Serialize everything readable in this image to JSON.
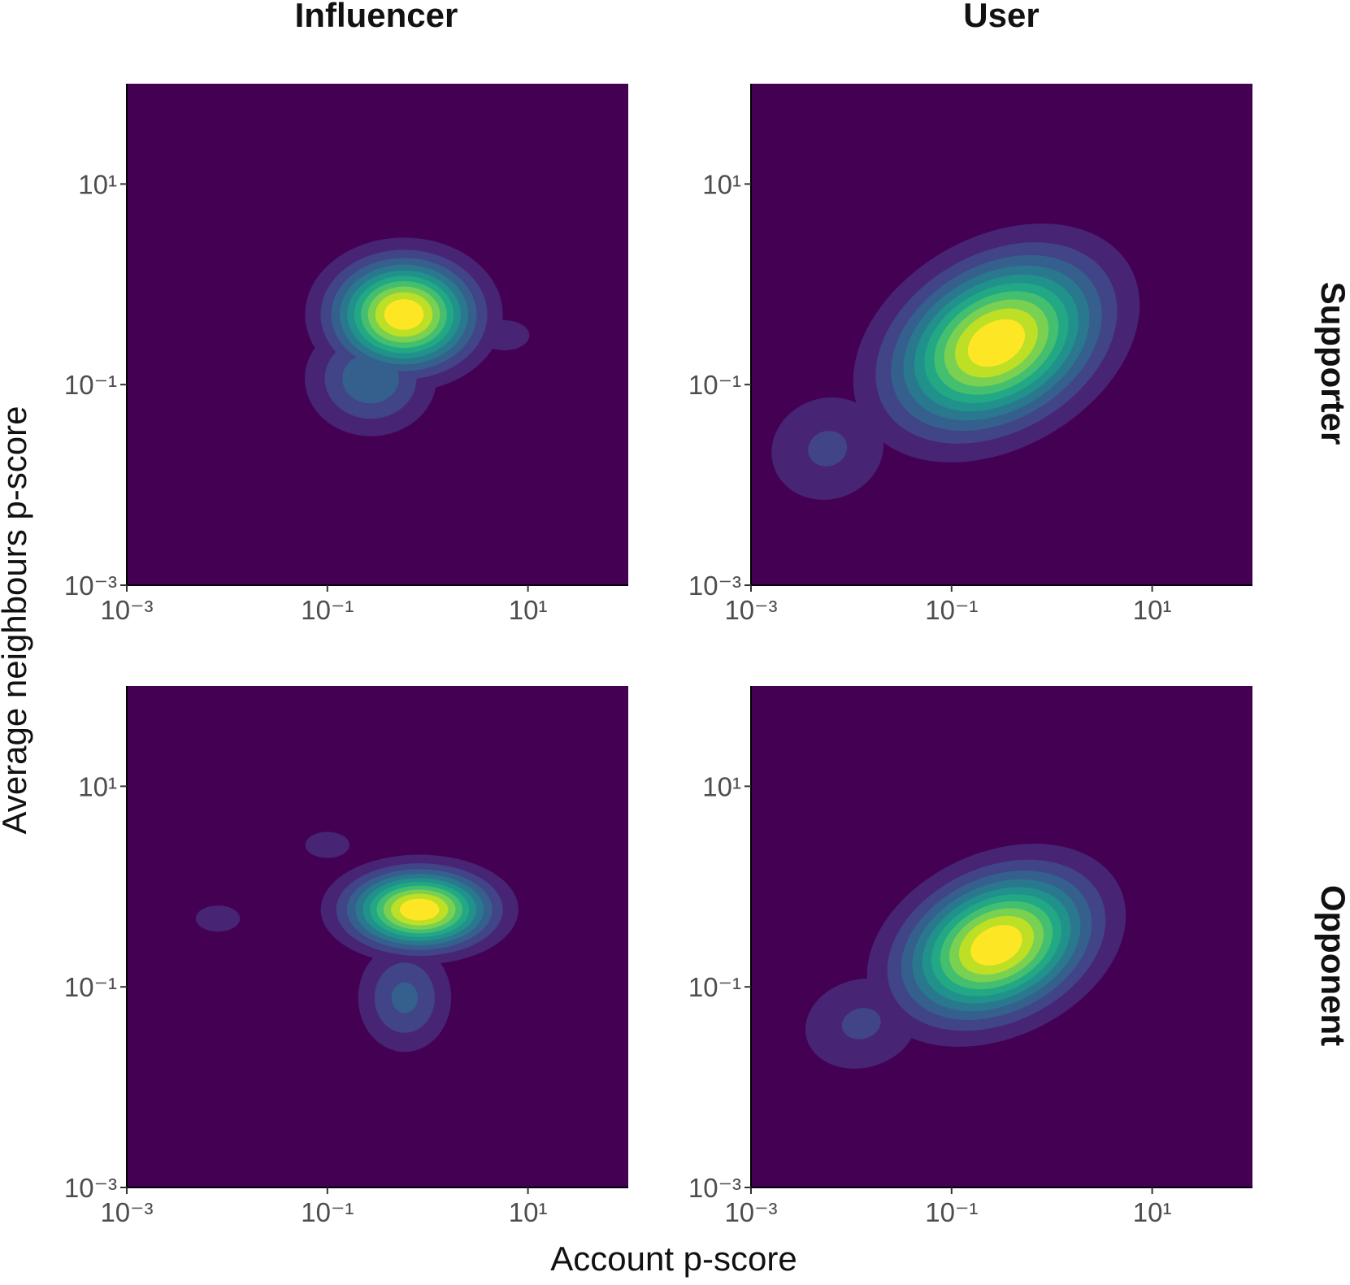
{
  "column_labels": [
    "Influencer",
    "User"
  ],
  "row_labels": [
    "Supporter",
    "Opponent"
  ],
  "x_label": "Account p-score",
  "y_label": "Average neighbours p-score",
  "chart_data": [
    {
      "type": "density",
      "column": 0,
      "row": 0,
      "log_scale": true,
      "xlim": [
        0.001,
        100
      ],
      "ylim": [
        0.001,
        100
      ],
      "xticks": [
        {
          "value": 0.001,
          "label": "10⁻³"
        },
        {
          "value": 0.1,
          "label": "10⁻¹"
        },
        {
          "value": 10,
          "label": "10¹"
        }
      ],
      "yticks": [
        {
          "value": 0.001,
          "label": "10⁻³"
        },
        {
          "value": 0.1,
          "label": "10⁻¹"
        },
        {
          "value": 10,
          "label": "10¹"
        }
      ],
      "colors": [
        "#440154",
        "#482475",
        "#414487",
        "#355f8d",
        "#2a788e",
        "#21918c",
        "#22a884",
        "#44bf70",
        "#7ad151",
        "#bddf26",
        "#fde725"
      ],
      "components": [
        {
          "x": 0.58,
          "y": 0.5,
          "sx": 0.45,
          "sy": 0.35,
          "angle": 0,
          "weight": 1
        },
        {
          "x": 0.27,
          "y": 0.115,
          "sx": 0.4,
          "sy": 0.35,
          "angle": 0,
          "weight": 0.35
        },
        {
          "x": 5.8,
          "y": 0.31,
          "sx": 0.25,
          "sy": 0.15,
          "angle": 0,
          "weight": 0.15
        }
      ]
    },
    {
      "type": "density",
      "column": 1,
      "row": 0,
      "log_scale": true,
      "xlim": [
        0.001,
        100
      ],
      "ylim": [
        0.001,
        100
      ],
      "xticks": [
        {
          "value": 0.001,
          "label": "10⁻³"
        },
        {
          "value": 0.1,
          "label": "10⁻¹"
        },
        {
          "value": 10,
          "label": "10¹"
        }
      ],
      "yticks": [
        {
          "value": 0.001,
          "label": "10⁻³"
        },
        {
          "value": 0.1,
          "label": "10⁻¹"
        },
        {
          "value": 10,
          "label": "10¹"
        }
      ],
      "colors": [
        "#440154",
        "#482475",
        "#414487",
        "#355f8d",
        "#2a788e",
        "#21918c",
        "#22a884",
        "#44bf70",
        "#7ad151",
        "#bddf26",
        "#fde725"
      ],
      "components": [
        {
          "x": 0.28,
          "y": 0.26,
          "sx": 0.7,
          "sy": 0.48,
          "angle": 30,
          "weight": 1
        },
        {
          "x": 0.0058,
          "y": 0.023,
          "sx": 0.45,
          "sy": 0.4,
          "angle": 20,
          "weight": 0.2
        }
      ]
    },
    {
      "type": "density",
      "column": 0,
      "row": 1,
      "log_scale": true,
      "xlim": [
        0.001,
        100
      ],
      "ylim": [
        0.001,
        100
      ],
      "xticks": [
        {
          "value": 0.001,
          "label": "10⁻³"
        },
        {
          "value": 0.1,
          "label": "10⁻¹"
        },
        {
          "value": 10,
          "label": "10¹"
        }
      ],
      "yticks": [
        {
          "value": 0.001,
          "label": "10⁻³"
        },
        {
          "value": 0.1,
          "label": "10⁻¹"
        },
        {
          "value": 10,
          "label": "10¹"
        }
      ],
      "colors": [
        "#440154",
        "#482475",
        "#414487",
        "#355f8d",
        "#2a788e",
        "#21918c",
        "#22a884",
        "#44bf70",
        "#7ad151",
        "#bddf26",
        "#fde725"
      ],
      "components": [
        {
          "x": 0.83,
          "y": 0.59,
          "sx": 0.45,
          "sy": 0.25,
          "angle": 0,
          "weight": 1
        },
        {
          "x": 0.59,
          "y": 0.078,
          "sx": 0.3,
          "sy": 0.35,
          "angle": 0,
          "weight": 0.3
        },
        {
          "x": 0.1,
          "y": 2.6,
          "sx": 0.22,
          "sy": 0.13,
          "angle": 0,
          "weight": 0.15
        },
        {
          "x": 0.0081,
          "y": 0.48,
          "sx": 0.22,
          "sy": 0.13,
          "angle": 0,
          "weight": 0.15
        }
      ]
    },
    {
      "type": "density",
      "column": 1,
      "row": 1,
      "log_scale": true,
      "xlim": [
        0.001,
        100
      ],
      "ylim": [
        0.001,
        100
      ],
      "xticks": [
        {
          "value": 0.001,
          "label": "10⁻³"
        },
        {
          "value": 0.1,
          "label": "10⁻¹"
        },
        {
          "value": 10,
          "label": "10¹"
        }
      ],
      "yticks": [
        {
          "value": 0.001,
          "label": "10⁻³"
        },
        {
          "value": 0.1,
          "label": "10⁻¹"
        },
        {
          "value": 10,
          "label": "10¹"
        }
      ],
      "colors": [
        "#440154",
        "#482475",
        "#414487",
        "#355f8d",
        "#2a788e",
        "#21918c",
        "#22a884",
        "#44bf70",
        "#7ad151",
        "#bddf26",
        "#fde725"
      ],
      "components": [
        {
          "x": 0.28,
          "y": 0.26,
          "sx": 0.62,
          "sy": 0.42,
          "angle": 25,
          "weight": 1
        },
        {
          "x": 0.0126,
          "y": 0.043,
          "sx": 0.45,
          "sy": 0.35,
          "angle": 15,
          "weight": 0.2
        }
      ]
    }
  ]
}
